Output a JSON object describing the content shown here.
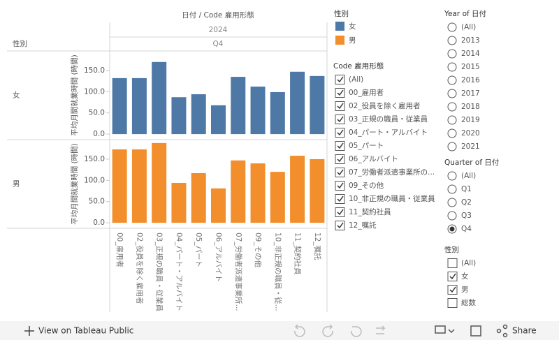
{
  "chart_data": {
    "type": "bar",
    "title": "日付 / Code 雇用形態",
    "column_levels": [
      "2024",
      "Q4"
    ],
    "row_header": "性別",
    "ylabel": "平均月間就業時間 (時間)",
    "categories": [
      "00_雇用者",
      "02_役員を除く雇用者",
      "03_正規の職員・従業員",
      "04_パート・アルバイト",
      "05_パート",
      "06_アルバイト",
      "07_労働者派遣事業所...",
      "09_その他",
      "10_非正規の職員・従...",
      "11_契約社員",
      "12_嘱託"
    ],
    "series": [
      {
        "name": "女",
        "color": "#4e79a7",
        "values": [
          132,
          132,
          170,
          87,
          94,
          68,
          135,
          112,
          99,
          147,
          137
        ]
      },
      {
        "name": "男",
        "color": "#f28e2b",
        "values": [
          173,
          173,
          188,
          94,
          117,
          81,
          147,
          140,
          120,
          158,
          150
        ]
      }
    ],
    "ylim": [
      -13,
      196
    ],
    "yticks": [
      {
        "value": 0,
        "label": "0.0"
      },
      {
        "value": 50,
        "label": "50.0"
      },
      {
        "value": 100,
        "label": "100.0"
      },
      {
        "value": 150,
        "label": "150.0"
      }
    ],
    "legend_title": "性別"
  },
  "filters": [
    {
      "title": "Code 雇用形態",
      "kind": "checkbox",
      "items": [
        "(All)",
        "00_雇用者",
        "02_役員を除く雇用者",
        "03_正規の職員・従業員",
        "04_パート・アルバイト",
        "05_パート",
        "06_アルバイト",
        "07_労働者派遣事業所の...",
        "09_その他",
        "10_非正規の職員・従業員",
        "11_契約社員",
        "12_嘱託"
      ],
      "checked": [
        true,
        true,
        true,
        true,
        true,
        true,
        true,
        true,
        true,
        true,
        true,
        true
      ]
    },
    {
      "title": "Year of 日付",
      "kind": "radio",
      "items": [
        "(All)",
        "2013",
        "2014",
        "2015",
        "2016",
        "2017",
        "2018",
        "2019",
        "2020",
        "2021"
      ],
      "checked": [
        false,
        false,
        false,
        false,
        false,
        false,
        false,
        false,
        false,
        false
      ]
    },
    {
      "title": "Quarter of 日付",
      "kind": "radio",
      "items": [
        "(All)",
        "Q1",
        "Q2",
        "Q3",
        "Q4"
      ],
      "checked": [
        false,
        false,
        false,
        false,
        true
      ]
    },
    {
      "title": "性別",
      "kind": "checkbox",
      "items": [
        "(All)",
        "女",
        "男",
        "総数"
      ],
      "checked": [
        false,
        true,
        true,
        false
      ]
    }
  ],
  "toolbar": {
    "view_link": "View on Tableau Public",
    "share": "Share"
  }
}
